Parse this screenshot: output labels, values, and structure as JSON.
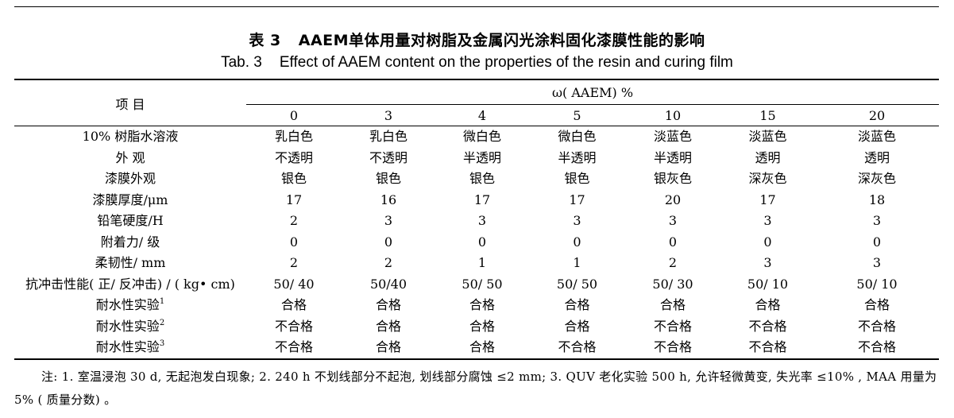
{
  "caption": {
    "zh_num": "表 3",
    "zh_title": "AAEM单体用量对树脂及金属闪光涂料固化漆膜性能的影响",
    "en_num": "Tab. 3",
    "en_title": "Effect of AAEM content on the properties of the resin and curing film"
  },
  "table": {
    "item_header": "项    目",
    "group_header": "ω( AAEM) %",
    "columns": [
      "0",
      "3",
      "4",
      "5",
      "10",
      "15",
      "20"
    ],
    "rows": [
      {
        "label": "10% 树脂水溶液",
        "values": [
          "乳白色",
          "乳白色",
          "微白色",
          "微白色",
          "淡蓝色",
          "淡蓝色",
          "淡蓝色"
        ]
      },
      {
        "label": "外    观",
        "values": [
          "不透明",
          "不透明",
          "半透明",
          "半透明",
          "半透明",
          "透明",
          "透明"
        ]
      },
      {
        "label": "漆膜外观",
        "values": [
          "银色",
          "银色",
          "银色",
          "银色",
          "银灰色",
          "深灰色",
          "深灰色"
        ]
      },
      {
        "label": "漆膜厚度/μm",
        "values": [
          "17",
          "16",
          "17",
          "17",
          "20",
          "17",
          "18"
        ]
      },
      {
        "label": "铅笔硬度/H",
        "values": [
          "2",
          "3",
          "3",
          "3",
          "3",
          "3",
          "3"
        ]
      },
      {
        "label": "附着力/ 级",
        "values": [
          "0",
          "0",
          "0",
          "0",
          "0",
          "0",
          "0"
        ]
      },
      {
        "label": "柔韧性/ mm",
        "values": [
          "2",
          "2",
          "1",
          "1",
          "2",
          "3",
          "3"
        ]
      },
      {
        "label": "抗冲击性能( 正/ 反冲击) / ( kg• cm)",
        "values": [
          "50/ 40",
          "50/40",
          "50/ 50",
          "50/ 50",
          "50/ 30",
          "50/ 10",
          "50/ 10"
        ]
      },
      {
        "label": "耐水性实验",
        "sup": "1",
        "values": [
          "合格",
          "合格",
          "合格",
          "合格",
          "合格",
          "合格",
          "合格"
        ]
      },
      {
        "label": "耐水性实验",
        "sup": "2",
        "values": [
          "不合格",
          "合格",
          "合格",
          "合格",
          "不合格",
          "不合格",
          "不合格"
        ]
      },
      {
        "label": "耐水性实验",
        "sup": "3",
        "values": [
          "不合格",
          "合格",
          "合格",
          "不合格",
          "不合格",
          "不合格",
          "不合格"
        ]
      }
    ]
  },
  "note": "注:  1. 室温浸泡 30 d, 无起泡发白现象; 2. 240 h 不划线部分不起泡, 划线部分腐蚀 ≤2 mm; 3. QUV 老化实验 500 h, 允许轻微黄变, 失光率 ≤10% , MAA 用量为 5% ( 质量分数) 。"
}
